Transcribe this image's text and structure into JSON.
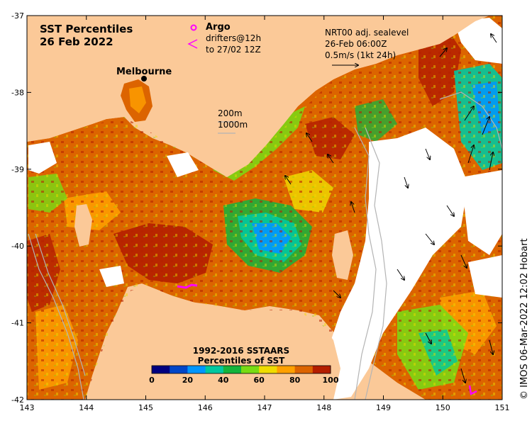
{
  "title": {
    "line1": "SST Percentiles",
    "line2": "26 Feb 2022"
  },
  "legend_argo": {
    "symbol": "o",
    "label": "Argo",
    "drifter_label": "drifters@12h",
    "drifter_label2": "to 27/02 12Z"
  },
  "current_note": {
    "line1": "NRT00 adj. sealevel",
    "line2": "26-Feb 06:00Z",
    "line3": "0.5m/s (1kt 24h)"
  },
  "contours": {
    "c200": "200m",
    "c1000": "1000m"
  },
  "place": {
    "melbourne": "Melbourne"
  },
  "credit": "© IMOS 06-Mar-2022 12:02 Hobart",
  "colorbar": {
    "title1": "1992-2016 SSTAARS",
    "title2": "Percentiles of SST",
    "ticks": [
      "0",
      "20",
      "40",
      "60",
      "80",
      "100"
    ],
    "colors": [
      "#000080",
      "#0046c8",
      "#0096ff",
      "#00c8a0",
      "#14b43c",
      "#78dc14",
      "#f0dc00",
      "#ffa000",
      "#dc6400",
      "#b41e00"
    ]
  },
  "axes": {
    "x_ticks": [
      "143",
      "144",
      "145",
      "146",
      "147",
      "148",
      "149",
      "150",
      "151"
    ],
    "y_ticks": [
      "-37",
      "-38",
      "-39",
      "-40",
      "-41",
      "-42"
    ],
    "xlim": [
      143,
      151
    ],
    "ylim": [
      -42,
      -37
    ]
  },
  "colors": {
    "land": "#fbc998",
    "no_data": "#ffffff",
    "argo": "#ff00ff",
    "contour": "#b4b4b4"
  }
}
